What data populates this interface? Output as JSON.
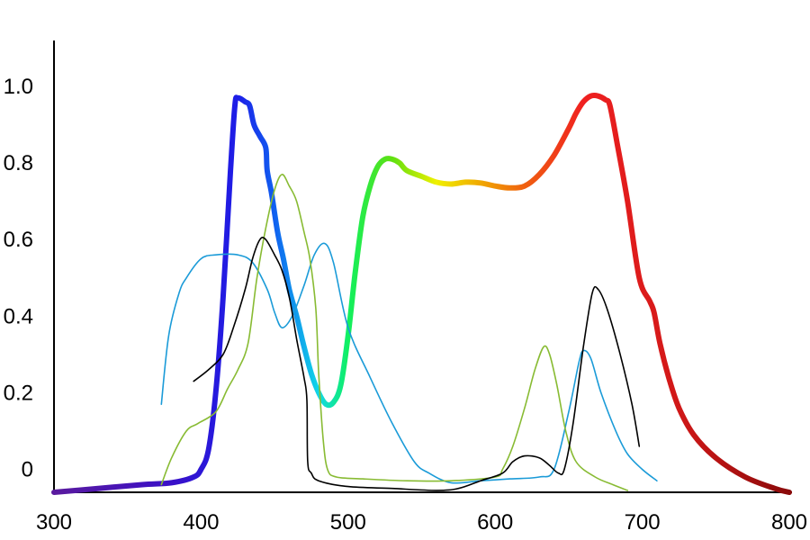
{
  "chart_data": {
    "type": "line",
    "title": "",
    "xlabel": "",
    "ylabel": "",
    "xlim": [
      300,
      800
    ],
    "ylim": [
      -0.06,
      1.12
    ],
    "x_ticks": [
      {
        "value": 300,
        "label": "300"
      },
      {
        "value": 400,
        "label": "400"
      },
      {
        "value": 500,
        "label": "500"
      },
      {
        "value": 600,
        "label": "600"
      },
      {
        "value": 700,
        "label": "700"
      },
      {
        "value": 800,
        "label": "800"
      }
    ],
    "y_ticks": [
      {
        "value": 0,
        "label": "0"
      },
      {
        "value": 0.2,
        "label": "0.2"
      },
      {
        "value": 0.4,
        "label": "0.4"
      },
      {
        "value": 0.6,
        "label": "0.6"
      },
      {
        "value": 0.8,
        "label": "0.8"
      },
      {
        "value": 1.0,
        "label": "1.0"
      }
    ],
    "grid": false,
    "legend": "none",
    "series": [
      {
        "color": "spectrum",
        "style": "thick",
        "points": [
          [
            300,
            -0.06
          ],
          [
            330,
            -0.05
          ],
          [
            360,
            -0.04
          ],
          [
            380,
            -0.035
          ],
          [
            395,
            -0.02
          ],
          [
            400,
            0.0
          ],
          [
            405,
            0.05
          ],
          [
            410,
            0.2
          ],
          [
            415,
            0.45
          ],
          [
            420,
            0.78
          ],
          [
            423,
            0.95
          ],
          [
            425,
            0.97
          ],
          [
            430,
            0.96
          ],
          [
            433,
            0.95
          ],
          [
            436,
            0.9
          ],
          [
            440,
            0.87
          ],
          [
            444,
            0.84
          ],
          [
            445,
            0.78
          ],
          [
            448,
            0.72
          ],
          [
            452,
            0.62
          ],
          [
            456,
            0.55
          ],
          [
            460,
            0.47
          ],
          [
            465,
            0.4
          ],
          [
            470,
            0.32
          ],
          [
            475,
            0.25
          ],
          [
            480,
            0.2
          ],
          [
            485,
            0.17
          ],
          [
            490,
            0.175
          ],
          [
            495,
            0.22
          ],
          [
            500,
            0.35
          ],
          [
            505,
            0.52
          ],
          [
            510,
            0.66
          ],
          [
            515,
            0.74
          ],
          [
            520,
            0.79
          ],
          [
            525,
            0.81
          ],
          [
            530,
            0.81
          ],
          [
            535,
            0.8
          ],
          [
            540,
            0.78
          ],
          [
            550,
            0.765
          ],
          [
            560,
            0.75
          ],
          [
            570,
            0.745
          ],
          [
            580,
            0.75
          ],
          [
            590,
            0.748
          ],
          [
            600,
            0.74
          ],
          [
            610,
            0.735
          ],
          [
            620,
            0.74
          ],
          [
            630,
            0.77
          ],
          [
            640,
            0.82
          ],
          [
            650,
            0.89
          ],
          [
            655,
            0.93
          ],
          [
            660,
            0.96
          ],
          [
            665,
            0.975
          ],
          [
            670,
            0.975
          ],
          [
            675,
            0.965
          ],
          [
            678,
            0.95
          ],
          [
            683,
            0.85
          ],
          [
            690,
            0.7
          ],
          [
            698,
            0.5
          ],
          [
            705,
            0.44
          ],
          [
            708,
            0.41
          ],
          [
            712,
            0.33
          ],
          [
            718,
            0.24
          ],
          [
            725,
            0.16
          ],
          [
            735,
            0.09
          ],
          [
            750,
            0.03
          ],
          [
            770,
            -0.02
          ],
          [
            790,
            -0.05
          ],
          [
            800,
            -0.06
          ]
        ]
      },
      {
        "color": "#1b9bd8",
        "style": "thin",
        "points": [
          [
            373,
            0.17
          ],
          [
            378,
            0.35
          ],
          [
            385,
            0.46
          ],
          [
            390,
            0.5
          ],
          [
            400,
            0.55
          ],
          [
            410,
            0.56
          ],
          [
            425,
            0.56
          ],
          [
            435,
            0.54
          ],
          [
            445,
            0.47
          ],
          [
            450,
            0.41
          ],
          [
            455,
            0.37
          ],
          [
            462,
            0.4
          ],
          [
            470,
            0.48
          ],
          [
            477,
            0.56
          ],
          [
            484,
            0.59
          ],
          [
            490,
            0.54
          ],
          [
            500,
            0.37
          ],
          [
            515,
            0.24
          ],
          [
            530,
            0.12
          ],
          [
            545,
            0.02
          ],
          [
            555,
            -0.01
          ],
          [
            570,
            -0.035
          ],
          [
            590,
            -0.03
          ],
          [
            610,
            -0.025
          ],
          [
            630,
            -0.02
          ],
          [
            640,
            0.0
          ],
          [
            650,
            0.15
          ],
          [
            657,
            0.28
          ],
          [
            660,
            0.31
          ],
          [
            665,
            0.29
          ],
          [
            672,
            0.2
          ],
          [
            682,
            0.1
          ],
          [
            690,
            0.04
          ],
          [
            700,
            0.0
          ],
          [
            710,
            -0.03
          ]
        ]
      },
      {
        "color": "#88bb33",
        "style": "thin",
        "points": [
          [
            373,
            -0.04
          ],
          [
            380,
            0.03
          ],
          [
            390,
            0.1
          ],
          [
            398,
            0.12
          ],
          [
            410,
            0.15
          ],
          [
            418,
            0.21
          ],
          [
            425,
            0.26
          ],
          [
            432,
            0.33
          ],
          [
            438,
            0.5
          ],
          [
            444,
            0.63
          ],
          [
            450,
            0.73
          ],
          [
            455,
            0.77
          ],
          [
            460,
            0.74
          ],
          [
            465,
            0.7
          ],
          [
            470,
            0.62
          ],
          [
            474,
            0.55
          ],
          [
            478,
            0.42
          ],
          [
            480,
            0.25
          ],
          [
            483,
            0.08
          ],
          [
            486,
            0.0
          ],
          [
            492,
            -0.02
          ],
          [
            510,
            -0.025
          ],
          [
            540,
            -0.03
          ],
          [
            570,
            -0.03
          ],
          [
            600,
            -0.02
          ],
          [
            605,
            0.0
          ],
          [
            612,
            0.06
          ],
          [
            620,
            0.16
          ],
          [
            627,
            0.26
          ],
          [
            633,
            0.32
          ],
          [
            637,
            0.3
          ],
          [
            642,
            0.22
          ],
          [
            648,
            0.1
          ],
          [
            655,
            0.02
          ],
          [
            668,
            -0.02
          ],
          [
            680,
            -0.04
          ],
          [
            690,
            -0.055
          ]
        ]
      },
      {
        "color": "#000000",
        "style": "thin",
        "points": [
          [
            395,
            0.23
          ],
          [
            405,
            0.26
          ],
          [
            415,
            0.3
          ],
          [
            422,
            0.37
          ],
          [
            430,
            0.47
          ],
          [
            435,
            0.55
          ],
          [
            440,
            0.6
          ],
          [
            444,
            0.6
          ],
          [
            450,
            0.56
          ],
          [
            455,
            0.52
          ],
          [
            460,
            0.45
          ],
          [
            465,
            0.34
          ],
          [
            470,
            0.24
          ],
          [
            472,
            0.18
          ],
          [
            472.5,
            0.02
          ],
          [
            475,
            -0.01
          ],
          [
            480,
            -0.03
          ],
          [
            500,
            -0.045
          ],
          [
            530,
            -0.05
          ],
          [
            560,
            -0.055
          ],
          [
            575,
            -0.05
          ],
          [
            590,
            -0.03
          ],
          [
            605,
            -0.01
          ],
          [
            612,
            0.02
          ],
          [
            620,
            0.035
          ],
          [
            630,
            0.03
          ],
          [
            637,
            0.01
          ],
          [
            643,
            -0.01
          ],
          [
            647,
            0.0
          ],
          [
            653,
            0.12
          ],
          [
            660,
            0.32
          ],
          [
            666,
            0.46
          ],
          [
            670,
            0.47
          ],
          [
            676,
            0.42
          ],
          [
            685,
            0.3
          ],
          [
            693,
            0.17
          ],
          [
            698,
            0.06
          ]
        ]
      }
    ]
  }
}
